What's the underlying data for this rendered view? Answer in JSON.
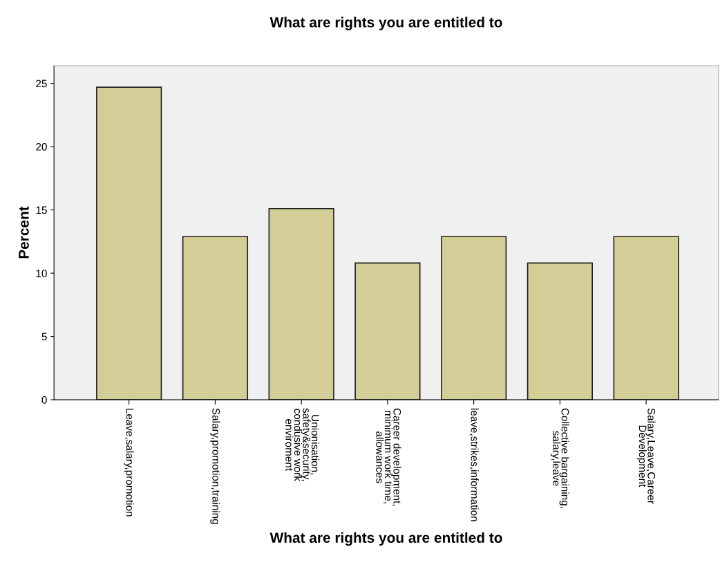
{
  "chart_data": {
    "type": "bar",
    "title": "What are rights you are entitled to",
    "xlabel": "What are rights you are entitled to",
    "ylabel": "Percent",
    "categories": [
      "Leave,salary,promotion",
      "Salary,promotion,training",
      "Unionisation,\nsafety&security,\ncondusive work\nenviroment",
      "Career development,\nminimum work time,\nallowances",
      "leave,strikes,information",
      "Collective bargaining,\nsalary,leave",
      "Salary,Leave,Career\nDevelopment"
    ],
    "values": [
      24.7,
      12.9,
      15.1,
      10.8,
      12.9,
      10.8,
      12.9
    ],
    "color": "#d3ce97",
    "ylim": [
      0,
      26.4
    ],
    "yticks": [
      0,
      5,
      10,
      15,
      20,
      25
    ],
    "grid": false,
    "legend": false
  }
}
